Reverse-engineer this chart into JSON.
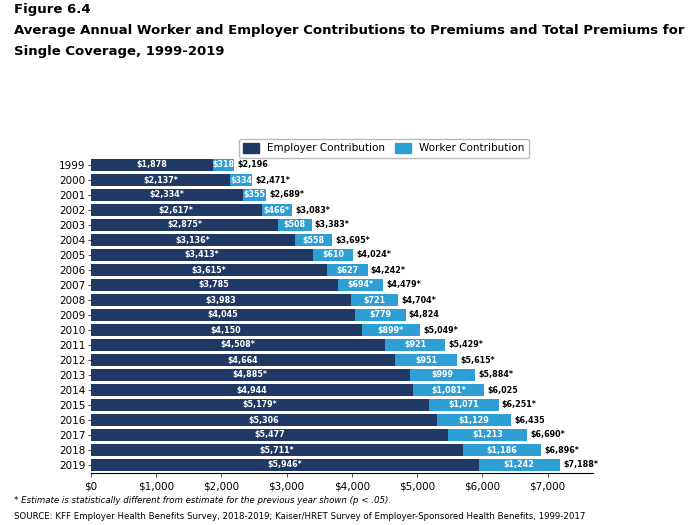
{
  "title_line1": "Figure 6.4",
  "title_line2": "Average Annual Worker and Employer Contributions to Premiums and Total Premiums for",
  "title_line3": "Single Coverage, 1999-2019",
  "years": [
    "1999",
    "2000",
    "2001",
    "2002",
    "2003",
    "2004",
    "2005",
    "2006",
    "2007",
    "2008",
    "2009",
    "2010",
    "2011",
    "2012",
    "2013",
    "2014",
    "2015",
    "2016",
    "2017",
    "2018",
    "2019"
  ],
  "employer": [
    1878,
    2137,
    2334,
    2617,
    2875,
    3136,
    3413,
    3615,
    3785,
    3983,
    4045,
    4150,
    4508,
    4664,
    4885,
    4944,
    5179,
    5306,
    5477,
    5711,
    5946
  ],
  "worker": [
    318,
    334,
    355,
    466,
    508,
    558,
    610,
    627,
    694,
    721,
    779,
    899,
    921,
    951,
    999,
    1081,
    1071,
    1129,
    1213,
    1186,
    1242
  ],
  "total": [
    2196,
    2471,
    2689,
    3083,
    3383,
    3695,
    4024,
    4242,
    4479,
    4704,
    4824,
    5049,
    5429,
    5615,
    5884,
    6025,
    6251,
    6435,
    6690,
    6896,
    7188
  ],
  "employer_labels": [
    "$1,878",
    "$2,137*",
    "$2,334*",
    "$2,617*",
    "$2,875*",
    "$3,136*",
    "$3,413*",
    "$3,615*",
    "$3,785",
    "$3,983",
    "$4,045",
    "$4,150",
    "$4,508*",
    "$4,664",
    "$4,885*",
    "$4,944",
    "$5,179*",
    "$5,306",
    "$5,477",
    "$5,711*",
    "$5,946*"
  ],
  "worker_labels": [
    "$318",
    "$334",
    "$355",
    "$466*",
    "$508",
    "$558",
    "$610",
    "$627",
    "$694*",
    "$721",
    "$779",
    "$899*",
    "$921",
    "$951",
    "$999",
    "$1,081*",
    "$1,071",
    "$1,129",
    "$1,213",
    "$1,186",
    "$1,242"
  ],
  "total_labels": [
    "$2,196",
    "$2,471*",
    "$2,689*",
    "$3,083*",
    "$3,383*",
    "$3,695*",
    "$4,024*",
    "$4,242*",
    "$4,479*",
    "$4,704*",
    "$4,824",
    "$5,049*",
    "$5,429*",
    "$5,615*",
    "$5,884*",
    "$6,025",
    "$6,251*",
    "$6,435",
    "$6,690*",
    "$6,896*",
    "$7,188*"
  ],
  "employer_color": "#1f3864",
  "worker_color": "#2e9fd4",
  "xlim": [
    0,
    7700
  ],
  "xticks": [
    0,
    1000,
    2000,
    3000,
    4000,
    5000,
    6000,
    7000
  ],
  "xtick_labels": [
    "$0",
    "$1,000",
    "$2,000",
    "$3,000",
    "$4,000",
    "$5,000",
    "$6,000",
    "$7,000"
  ],
  "footnote1": "* Estimate is statistically different from estimate for the previous year shown (p < .05).",
  "footnote2": "SOURCE: KFF Employer Health Benefits Survey, 2018-2019; Kaiser/HRET Survey of Employer-Sponsored Health Benefits, 1999-2017",
  "legend_employer": "Employer Contribution",
  "legend_worker": "Worker Contribution",
  "bar_height": 0.75,
  "label_fontsize": 5.8,
  "tick_fontsize": 7.5,
  "title_fontsize": 9.5
}
